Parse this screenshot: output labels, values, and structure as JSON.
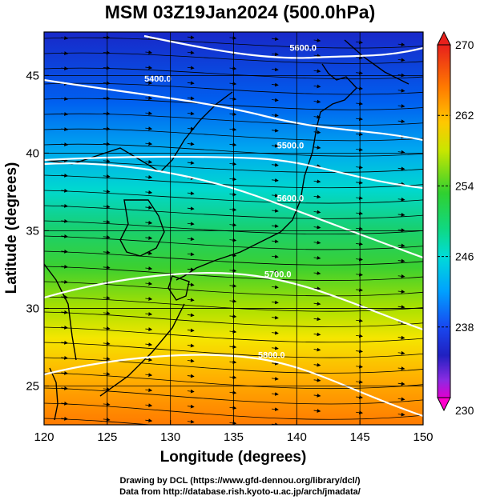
{
  "title": "MSM 03Z19Jan2024 (500.0hPa)",
  "credits": {
    "line1": "Drawing by DCL (https://www.gfd-dennou.org/library/dcl/)",
    "line2": "Data from http://database.rish.kyoto-u.ac.jp/arch/jmadata/"
  },
  "axes": {
    "xlabel": "Longitude (degrees)",
    "ylabel": "Latitude  (degrees)",
    "xlim": [
      120,
      150
    ],
    "ylim": [
      22.5,
      47.8
    ],
    "xticks": [
      "120",
      "125",
      "130",
      "135",
      "140",
      "145",
      "150"
    ],
    "yticks": [
      "25",
      "30",
      "35",
      "40",
      "45"
    ],
    "grid": true
  },
  "colorbar": {
    "range": [
      230,
      270
    ],
    "labels": [
      "270",
      "262",
      "254",
      "246",
      "238",
      "230"
    ],
    "colors": [
      "#e31a1c",
      "#ff8c00",
      "#ffd700",
      "#aee000",
      "#22d022",
      "#00e0c8",
      "#00b4ff",
      "#0060ff",
      "#1a1ad0",
      "#8a2be2",
      "#ff00cc"
    ]
  },
  "contours": [
    {
      "label": "5600.0",
      "lon": 140.5,
      "lat": 46.6
    },
    {
      "label": "5400.0",
      "lon": 129,
      "lat": 44.6
    },
    {
      "label": "5500.0",
      "lon": 139.5,
      "lat": 40.3
    },
    {
      "label": "5600.0",
      "lon": 139.5,
      "lat": 36.9
    },
    {
      "label": "5700.0",
      "lon": 138.5,
      "lat": 32.0
    },
    {
      "label": "5800.0",
      "lon": 138.0,
      "lat": 26.8
    }
  ],
  "chart_data": {
    "type": "heatmap",
    "title": "MSM 03Z19Jan2024 (500.0hPa)",
    "xlabel": "Longitude (degrees)",
    "ylabel": "Latitude  (degrees)",
    "xlim": [
      120,
      150
    ],
    "ylim": [
      22.5,
      47.8
    ],
    "color_range": [
      230,
      270
    ],
    "contour_levels": [
      "5400.0",
      "5500.0",
      "5600.0",
      "5700.0",
      "5800.0"
    ]
  }
}
